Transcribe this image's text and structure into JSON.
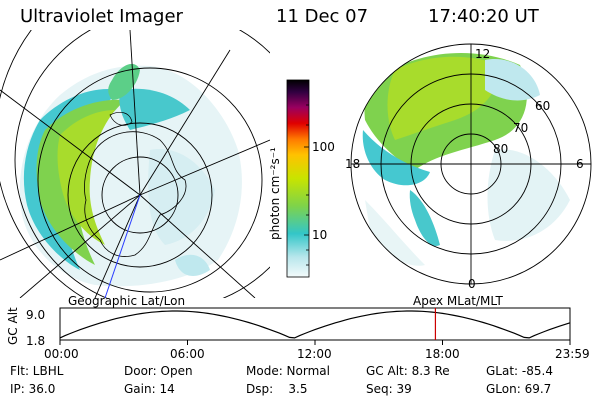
{
  "header": {
    "title": "Ultraviolet Imager",
    "date": "11 Dec 07",
    "time": "17:40:20 UT"
  },
  "colorbar": {
    "unit_label": "photon cm⁻²s⁻¹",
    "ticks": [
      "100",
      "10"
    ],
    "colors": [
      "#e8f4f6",
      "#9ee0e6",
      "#33c6c8",
      "#7ed34a",
      "#c8e400",
      "#ffa300",
      "#e00000",
      "#9a0060",
      "#300040",
      "#000000"
    ]
  },
  "left_map": {
    "caption": "Geographic Lat/Lon"
  },
  "right_map": {
    "caption": "Apex MLat/MLT",
    "mlt_labels": [
      "12",
      "18",
      "6",
      "0"
    ],
    "lat_labels": [
      "60",
      "70",
      "80"
    ]
  },
  "altitude_plot": {
    "ylabel": "GC Alt",
    "yticks": [
      "9.0",
      "1.8"
    ],
    "xticks": [
      "00:00",
      "06:00",
      "12:00",
      "18:00",
      "23:59"
    ],
    "marker_time": "17:40",
    "marker_color": "#cc0000",
    "orbit_line_color": "#000000"
  },
  "info": {
    "row1": [
      "Flt: LBHL",
      "Door: Open",
      "Mode: Normal",
      "GC Alt: 8.3 Re",
      "GLat: -85.4"
    ],
    "row2": [
      "IP: 36.0",
      "Gain: 14",
      "Dsp:    3.5",
      "Seq: 39",
      "GLon: 69.7"
    ]
  }
}
